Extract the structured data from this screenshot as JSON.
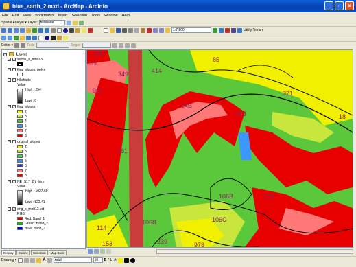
{
  "window": {
    "title": "blue_earth_2.mxd - ArcMap - ArcInfo"
  },
  "menu": [
    "File",
    "Edit",
    "View",
    "Bookmarks",
    "Insert",
    "Selection",
    "Tools",
    "Window",
    "Help"
  ],
  "toolbar": {
    "spatial_analyst_label": "Spatial Analyst ▾",
    "layer_label": "Layer:",
    "layer_value": "hillshade",
    "scale_value": "1:7,500",
    "utility_tools_label": "Utility Tools ▾",
    "editor_label": "Editor ▾",
    "task_label": "Task:",
    "target_label": "Target:"
  },
  "toc": {
    "layers_title": "Layers",
    "items": [
      {
        "name": "ssfme_a_mn013",
        "checked": true
      },
      {
        "name": "final_slopes_polys",
        "checked": false
      },
      {
        "name": "hillshade",
        "checked": false,
        "value_label": "Value",
        "high": "High : 254",
        "low": "Low : 0"
      },
      {
        "name": "final_slopes",
        "checked": true,
        "classes": [
          "2",
          "3",
          "4",
          "5",
          "7",
          "8"
        ]
      },
      {
        "name": "original_slopes",
        "checked": false,
        "classes": [
          "2",
          "3",
          "4",
          "5",
          "6",
          "7",
          "8"
        ]
      },
      {
        "name": "NE_S17_2ft_dem",
        "checked": true,
        "value_label": "Value",
        "high": "High : 1027.69",
        "low": "Low : 822.41"
      },
      {
        "name": "orig_s_mn013.sid",
        "checked": true,
        "rgb_label": "RGB",
        "bands": [
          "Red:  Band_1",
          "Green:  Band_2",
          "Blue:  Band_3"
        ]
      }
    ],
    "tabs": [
      "Display",
      "Source",
      "Selection",
      "Map Book"
    ]
  },
  "colors": {
    "slope_classes": [
      "#f0f000",
      "#c8e63c",
      "#46c83c",
      "#3c96ff",
      "#ff7878",
      "#e60000"
    ],
    "original_classes": [
      "#f0f000",
      "#c8e63c",
      "#46c83c",
      "#3c96ff",
      "#2a3cc8",
      "#ff7878",
      "#e60000"
    ]
  },
  "map": {
    "labels": [
      "39B",
      "39",
      "349",
      "414",
      "85",
      "321",
      "96F",
      "94B",
      "34B",
      "18",
      "961",
      "106B",
      "239",
      "114",
      "106B",
      "106C",
      "239",
      "978",
      "153"
    ]
  },
  "drawing": {
    "label": "Drawing ▾",
    "font": "Arial",
    "size": "10"
  }
}
